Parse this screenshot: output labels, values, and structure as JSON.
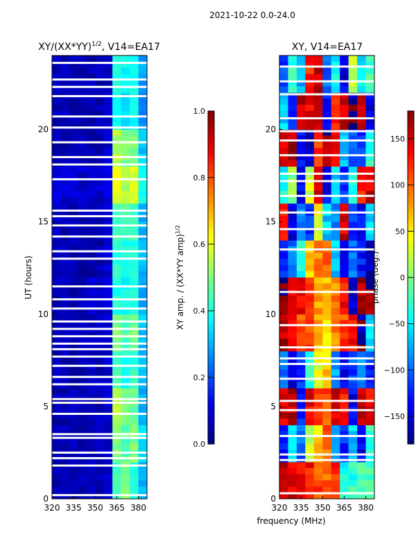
{
  "suptitle": "2021-10-22 0.0-24.0",
  "xlabel": "frequency (MHz)",
  "chart_data": [
    {
      "type": "heatmap",
      "title": "XY/(XX*YY)^1/2, V14=EA17",
      "title_main": "XY/(XX*YY)",
      "title_sup": "1/2",
      "title_rest": ", V14=EA17",
      "ylabel": "UT (hours)",
      "xlim": [
        320,
        386
      ],
      "ylim": [
        0,
        24
      ],
      "xticks": [
        "320",
        "335",
        "350",
        "365",
        "380"
      ],
      "yticks": [
        "0",
        "5",
        "10",
        "15",
        "20"
      ],
      "freq_bins": [
        323,
        329,
        335,
        341,
        347,
        353,
        359,
        365,
        371,
        377,
        383
      ],
      "time_bins": [
        1,
        3,
        5,
        7,
        9,
        11,
        13,
        15,
        17,
        19,
        21,
        23
      ],
      "values": [
        [
          0.05,
          0.05,
          0.05,
          0.05,
          0.05,
          0.05,
          0.07,
          0.45,
          0.5,
          0.42,
          0.3
        ],
        [
          0.05,
          0.05,
          0.05,
          0.05,
          0.05,
          0.05,
          0.08,
          0.5,
          0.45,
          0.5,
          0.35
        ],
        [
          0.05,
          0.05,
          0.05,
          0.05,
          0.05,
          0.05,
          0.08,
          0.55,
          0.5,
          0.48,
          0.3
        ],
        [
          0.05,
          0.05,
          0.05,
          0.05,
          0.06,
          0.05,
          0.08,
          0.45,
          0.4,
          0.42,
          0.3
        ],
        [
          0.05,
          0.05,
          0.05,
          0.05,
          0.06,
          0.06,
          0.08,
          0.5,
          0.45,
          0.5,
          0.32
        ],
        [
          0.05,
          0.05,
          0.05,
          0.05,
          0.08,
          0.06,
          0.08,
          0.4,
          0.38,
          0.42,
          0.3
        ],
        [
          0.05,
          0.05,
          0.05,
          0.05,
          0.05,
          0.05,
          0.08,
          0.42,
          0.4,
          0.4,
          0.3
        ],
        [
          0.06,
          0.05,
          0.05,
          0.05,
          0.05,
          0.05,
          0.08,
          0.45,
          0.45,
          0.45,
          0.3
        ],
        [
          0.1,
          0.08,
          0.08,
          0.07,
          0.08,
          0.07,
          0.1,
          0.6,
          0.55,
          0.58,
          0.4
        ],
        [
          0.05,
          0.05,
          0.05,
          0.05,
          0.05,
          0.05,
          0.08,
          0.55,
          0.5,
          0.5,
          0.32
        ],
        [
          0.05,
          0.05,
          0.05,
          0.05,
          0.05,
          0.05,
          0.07,
          0.4,
          0.35,
          0.38,
          0.25
        ],
        [
          0.05,
          0.05,
          0.05,
          0.05,
          0.05,
          0.05,
          0.07,
          0.42,
          0.38,
          0.4,
          0.28
        ]
      ],
      "flagged_hours": [
        0.2,
        1.8,
        2.2,
        2.5,
        3.3,
        3.5,
        4.6,
        5.2,
        5.4,
        6.2,
        6.6,
        7.2,
        7.7,
        8.1,
        8.4,
        8.8,
        9.2,
        9.6,
        10.3,
        10.8,
        11.5,
        13.0,
        13.4,
        14.2,
        14.8,
        15.3,
        15.6,
        17.3,
        18.1,
        18.5,
        19.3,
        20.1,
        20.7,
        21.8,
        22.3,
        22.7,
        23.6
      ],
      "colorbar": {
        "label": "XY amp. / (XX*YY amp)^1/2",
        "label_main": "XY amp. / (XX*YY amp)",
        "label_sup": "1/2",
        "range": [
          0,
          1
        ],
        "ticks": [
          "0.0",
          "0.2",
          "0.4",
          "0.6",
          "0.8",
          "1.0"
        ]
      }
    },
    {
      "type": "heatmap",
      "title": "XY, V14=EA17",
      "xlim": [
        320,
        386
      ],
      "ylim": [
        0,
        24
      ],
      "xticks": [
        "320",
        "335",
        "350",
        "365",
        "380"
      ],
      "yticks": [
        "0",
        "5",
        "10",
        "15",
        "20"
      ],
      "freq_bins": [
        323,
        329,
        335,
        341,
        347,
        353,
        359,
        365,
        371,
        377,
        383
      ],
      "time_bins": [
        1,
        3,
        5,
        7,
        9,
        11,
        13,
        15,
        17,
        19,
        21,
        23
      ],
      "values": [
        [
          160,
          150,
          140,
          130,
          110,
          100,
          120,
          -40,
          -30,
          -20,
          -10
        ],
        [
          -120,
          -60,
          -100,
          30,
          60,
          100,
          -80,
          -120,
          -60,
          -140,
          -30
        ],
        [
          150,
          160,
          -130,
          140,
          120,
          110,
          150,
          130,
          -140,
          160,
          140
        ],
        [
          -100,
          -150,
          -120,
          -30,
          40,
          60,
          -80,
          -140,
          -110,
          -90,
          -120
        ],
        [
          160,
          130,
          100,
          110,
          80,
          60,
          90,
          110,
          130,
          -170,
          -60
        ],
        [
          170,
          150,
          140,
          120,
          80,
          70,
          90,
          130,
          -150,
          160,
          170
        ],
        [
          -130,
          -90,
          -40,
          60,
          90,
          110,
          -60,
          -140,
          -100,
          -130,
          -160
        ],
        [
          120,
          -150,
          -90,
          -120,
          40,
          -60,
          -80,
          150,
          -120,
          -140,
          -60
        ],
        [
          -40,
          10,
          -140,
          30,
          150,
          -140,
          -60,
          -120,
          -40,
          120,
          150
        ],
        [
          140,
          160,
          -140,
          -150,
          120,
          170,
          140,
          -60,
          -100,
          -120,
          -30
        ],
        [
          -60,
          -120,
          160,
          140,
          150,
          -130,
          130,
          150,
          -170,
          160,
          -140
        ],
        [
          -110,
          -30,
          -70,
          120,
          150,
          -100,
          -40,
          -140,
          20,
          -50,
          -20
        ]
      ],
      "flagged_hours": [
        0.3,
        2.1,
        2.4,
        3.4,
        4.8,
        5.3,
        6.5,
        7.3,
        7.6,
        8.2,
        9.4,
        11.2,
        13.5,
        14.6,
        15.5,
        16.4,
        17.2,
        17.6,
        18.6,
        19.4,
        19.9,
        20.6,
        21.9,
        22.6,
        23.4
      ],
      "colorbar": {
        "label": "phase (deg.)",
        "range": [
          -180,
          180
        ],
        "ticks": [
          "−150",
          "−100",
          "−50",
          "0",
          "50",
          "100",
          "150"
        ],
        "tick_values": [
          -150,
          -100,
          -50,
          0,
          50,
          100,
          150
        ]
      }
    }
  ]
}
